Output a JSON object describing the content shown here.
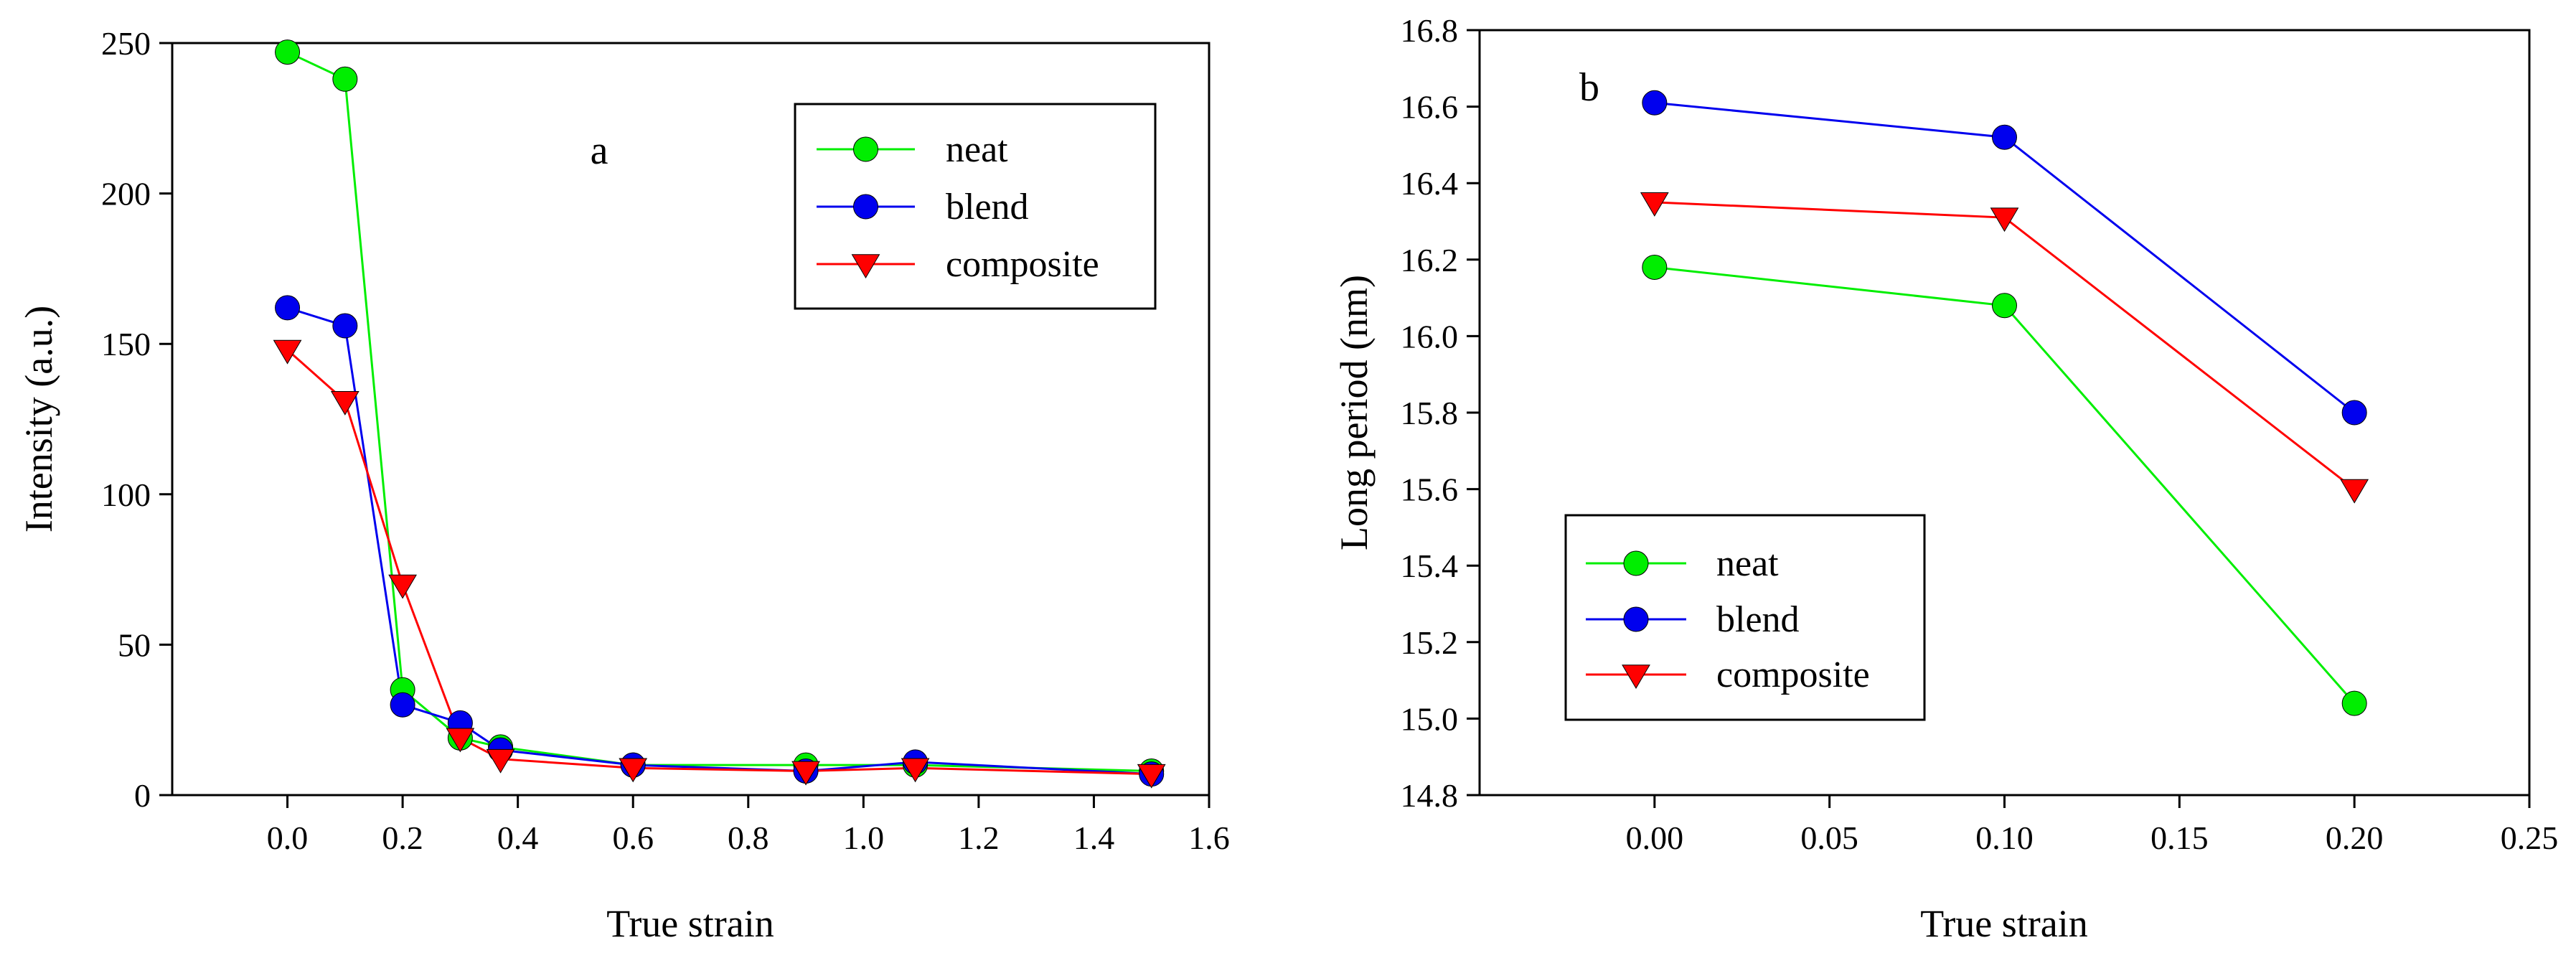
{
  "chart_data": [
    {
      "type": "line",
      "panel_label": "a",
      "title": "",
      "xlabel": "True strain",
      "ylabel": "Intensity (a.u.)",
      "xlim": [
        -0.2,
        1.6
      ],
      "ylim": [
        0,
        250
      ],
      "xticks": [
        0.0,
        0.2,
        0.4,
        0.6,
        0.8,
        1.0,
        1.2,
        1.4,
        1.6
      ],
      "xtick_labels": [
        "0.0",
        "0.2",
        "0.4",
        "0.6",
        "0.8",
        "1.0",
        "1.2",
        "1.4",
        "1.6"
      ],
      "yticks": [
        0,
        50,
        100,
        150,
        200,
        250
      ],
      "ytick_labels": [
        "0",
        "50",
        "100",
        "150",
        "200",
        "250"
      ],
      "legend_position": "top-right",
      "grid": false,
      "series": [
        {
          "name": "neat",
          "color": "#00ee00",
          "marker": "circle",
          "x": [
            0.0,
            0.1,
            0.2,
            0.3,
            0.37,
            0.6,
            0.9,
            1.09,
            1.5
          ],
          "y": [
            247,
            238,
            35,
            19,
            16,
            10,
            10,
            10,
            8
          ]
        },
        {
          "name": "blend",
          "color": "#0000ee",
          "marker": "circle",
          "x": [
            0.0,
            0.1,
            0.2,
            0.3,
            0.37,
            0.6,
            0.9,
            1.09,
            1.5
          ],
          "y": [
            162,
            156,
            30,
            24,
            15,
            10,
            8,
            11,
            7
          ]
        },
        {
          "name": "composite",
          "color": "#ff0000",
          "marker": "triangle-down",
          "x": [
            0.0,
            0.1,
            0.2,
            0.3,
            0.37,
            0.6,
            0.9,
            1.09,
            1.5
          ],
          "y": [
            148,
            131,
            70,
            19,
            12,
            9,
            8,
            9,
            7
          ]
        }
      ]
    },
    {
      "type": "line",
      "panel_label": "b",
      "title": "",
      "xlabel": "True strain",
      "ylabel": "Long period (nm)",
      "xlim": [
        -0.05,
        0.25
      ],
      "ylim": [
        14.8,
        16.8
      ],
      "xticks": [
        0.0,
        0.05,
        0.1,
        0.15,
        0.2,
        0.25
      ],
      "xtick_labels": [
        "0.00",
        "0.05",
        "0.10",
        "0.15",
        "0.20",
        "0.25"
      ],
      "yticks": [
        14.8,
        15.0,
        15.2,
        15.4,
        15.6,
        15.8,
        16.0,
        16.2,
        16.4,
        16.6,
        16.8
      ],
      "ytick_labels": [
        "14.8",
        "15.0",
        "15.2",
        "15.4",
        "15.6",
        "15.8",
        "16.0",
        "16.2",
        "16.4",
        "16.6",
        "16.8"
      ],
      "legend_position": "bottom-left",
      "grid": false,
      "series": [
        {
          "name": "neat",
          "color": "#00ee00",
          "marker": "circle",
          "x": [
            0.0,
            0.1,
            0.2
          ],
          "y": [
            16.18,
            16.08,
            15.04
          ]
        },
        {
          "name": "blend",
          "color": "#0000ee",
          "marker": "circle",
          "x": [
            0.0,
            0.1,
            0.2
          ],
          "y": [
            16.61,
            16.52,
            15.8
          ]
        },
        {
          "name": "composite",
          "color": "#ff0000",
          "marker": "triangle-down",
          "x": [
            0.0,
            0.1,
            0.2
          ],
          "y": [
            16.35,
            16.31,
            15.6
          ]
        }
      ]
    }
  ]
}
